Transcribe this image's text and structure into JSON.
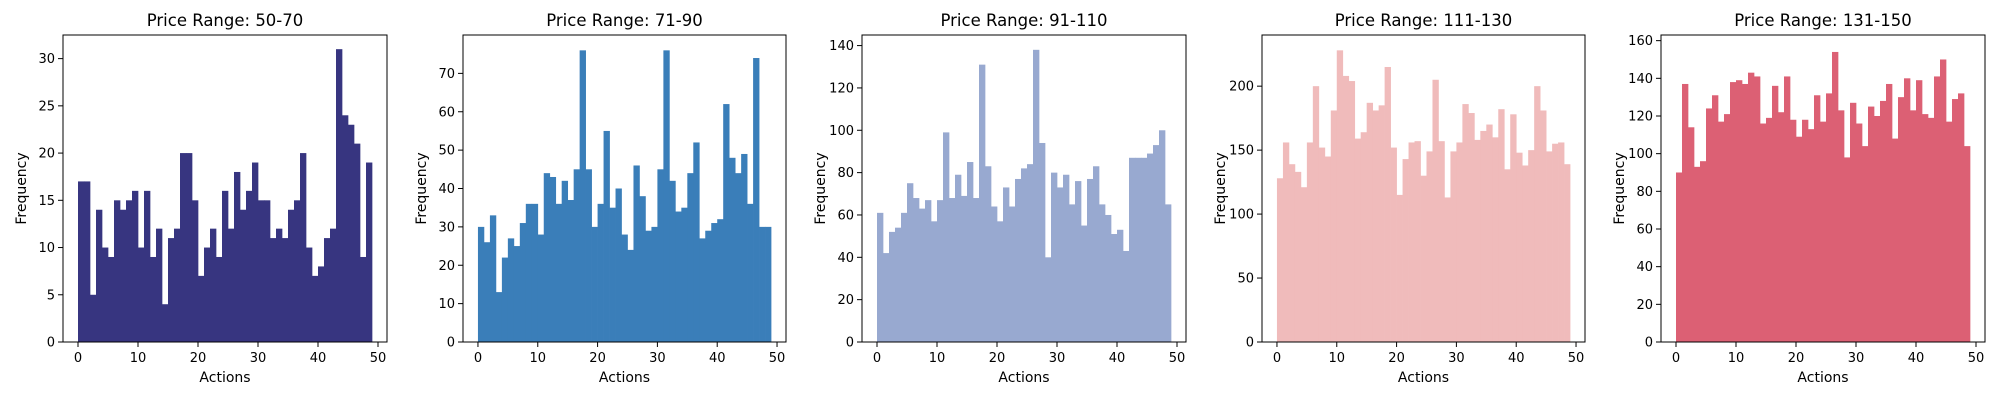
{
  "chart_data": [
    {
      "type": "bar",
      "title": "Price Range: 50-70",
      "xlabel": "Actions",
      "ylabel": "Frequency",
      "color": "#373580",
      "xlim": [
        -2.5,
        51.5
      ],
      "ylim": [
        0,
        32.5
      ],
      "xticks": [
        0,
        10,
        20,
        30,
        40,
        50
      ],
      "yticks": [
        0,
        5,
        10,
        15,
        20,
        25,
        30
      ],
      "x": [
        0,
        1,
        2,
        3,
        4,
        5,
        6,
        7,
        8,
        9,
        10,
        11,
        12,
        13,
        14,
        15,
        16,
        17,
        18,
        19,
        20,
        21,
        22,
        23,
        24,
        25,
        26,
        27,
        28,
        29,
        30,
        31,
        32,
        33,
        34,
        35,
        36,
        37,
        38,
        39,
        40,
        41,
        42,
        43,
        44,
        45,
        46,
        47,
        48
      ],
      "values": [
        17,
        17,
        5,
        14,
        10,
        9,
        15,
        14,
        15,
        16,
        10,
        16,
        9,
        12,
        4,
        11,
        12,
        20,
        20,
        15,
        7,
        10,
        12,
        9,
        16,
        12,
        18,
        14,
        16,
        19,
        15,
        15,
        11,
        12,
        11,
        14,
        15,
        20,
        10,
        7,
        8,
        11,
        12,
        31,
        24,
        23,
        21,
        9,
        19
      ]
    },
    {
      "type": "bar",
      "title": "Price Range: 71-90",
      "xlabel": "Actions",
      "ylabel": "Frequency",
      "color": "#3a7eb9",
      "xlim": [
        -2.5,
        51.5
      ],
      "ylim": [
        0,
        80
      ],
      "xticks": [
        0,
        10,
        20,
        30,
        40,
        50
      ],
      "yticks": [
        0,
        10,
        20,
        30,
        40,
        50,
        60,
        70
      ],
      "x": [
        0,
        1,
        2,
        3,
        4,
        5,
        6,
        7,
        8,
        9,
        10,
        11,
        12,
        13,
        14,
        15,
        16,
        17,
        18,
        19,
        20,
        21,
        22,
        23,
        24,
        25,
        26,
        27,
        28,
        29,
        30,
        31,
        32,
        33,
        34,
        35,
        36,
        37,
        38,
        39,
        40,
        41,
        42,
        43,
        44,
        45,
        46,
        47,
        48
      ],
      "values": [
        30,
        26,
        33,
        13,
        22,
        27,
        25,
        31,
        36,
        36,
        28,
        44,
        43,
        36,
        42,
        37,
        45,
        76,
        45,
        30,
        36,
        55,
        35,
        40,
        28,
        24,
        46,
        38,
        29,
        30,
        45,
        76,
        42,
        34,
        35,
        44,
        52,
        27,
        29,
        31,
        32,
        62,
        48,
        44,
        49,
        36,
        74,
        30,
        30
      ]
    },
    {
      "type": "bar",
      "title": "Price Range: 91-110",
      "xlabel": "Actions",
      "ylabel": "Frequency",
      "color": "#98a9d0",
      "xlim": [
        -2.5,
        51.5
      ],
      "ylim": [
        0,
        145
      ],
      "xticks": [
        0,
        10,
        20,
        30,
        40,
        50
      ],
      "yticks": [
        0,
        20,
        40,
        60,
        80,
        100,
        120,
        140
      ],
      "x": [
        0,
        1,
        2,
        3,
        4,
        5,
        6,
        7,
        8,
        9,
        10,
        11,
        12,
        13,
        14,
        15,
        16,
        17,
        18,
        19,
        20,
        21,
        22,
        23,
        24,
        25,
        26,
        27,
        28,
        29,
        30,
        31,
        32,
        33,
        34,
        35,
        36,
        37,
        38,
        39,
        40,
        41,
        42,
        43,
        44,
        45,
        46,
        47,
        48
      ],
      "values": [
        61,
        42,
        52,
        54,
        61,
        75,
        68,
        63,
        67,
        57,
        67,
        99,
        68,
        79,
        69,
        85,
        68,
        131,
        83,
        64,
        57,
        73,
        64,
        77,
        82,
        84,
        138,
        94,
        40,
        80,
        73,
        79,
        65,
        76,
        55,
        77,
        83,
        65,
        60,
        51,
        53,
        43,
        87,
        87,
        87,
        89,
        93,
        100,
        65
      ]
    },
    {
      "type": "bar",
      "title": "Price Range: 111-130",
      "xlabel": "Actions",
      "ylabel": "Frequency",
      "color": "#f0bbbb",
      "xlim": [
        -2.5,
        51.5
      ],
      "ylim": [
        0,
        240
      ],
      "xticks": [
        0,
        10,
        20,
        30,
        40,
        50
      ],
      "yticks": [
        0,
        50,
        100,
        150,
        200
      ],
      "x": [
        0,
        1,
        2,
        3,
        4,
        5,
        6,
        7,
        8,
        9,
        10,
        11,
        12,
        13,
        14,
        15,
        16,
        17,
        18,
        19,
        20,
        21,
        22,
        23,
        24,
        25,
        26,
        27,
        28,
        29,
        30,
        31,
        32,
        33,
        34,
        35,
        36,
        37,
        38,
        39,
        40,
        41,
        42,
        43,
        44,
        45,
        46,
        47,
        48
      ],
      "values": [
        128,
        156,
        139,
        133,
        121,
        156,
        200,
        152,
        145,
        181,
        228,
        208,
        204,
        159,
        164,
        187,
        181,
        185,
        215,
        152,
        115,
        143,
        156,
        157,
        130,
        149,
        205,
        157,
        113,
        149,
        156,
        186,
        179,
        158,
        165,
        170,
        160,
        182,
        135,
        178,
        148,
        138,
        150,
        200,
        181,
        149,
        155,
        156,
        139
      ]
    },
    {
      "type": "bar",
      "title": "Price Range: 131-150",
      "xlabel": "Actions",
      "ylabel": "Frequency",
      "color": "#dc6074",
      "xlim": [
        -2.5,
        51.5
      ],
      "ylim": [
        0,
        163
      ],
      "xticks": [
        0,
        10,
        20,
        30,
        40,
        50
      ],
      "yticks": [
        0,
        20,
        40,
        60,
        80,
        100,
        120,
        140,
        160
      ],
      "x": [
        0,
        1,
        2,
        3,
        4,
        5,
        6,
        7,
        8,
        9,
        10,
        11,
        12,
        13,
        14,
        15,
        16,
        17,
        18,
        19,
        20,
        21,
        22,
        23,
        24,
        25,
        26,
        27,
        28,
        29,
        30,
        31,
        32,
        33,
        34,
        35,
        36,
        37,
        38,
        39,
        40,
        41,
        42,
        43,
        44,
        45,
        46,
        47,
        48
      ],
      "values": [
        90,
        137,
        114,
        93,
        96,
        124,
        131,
        117,
        121,
        138,
        139,
        137,
        143,
        141,
        116,
        119,
        136,
        122,
        141,
        118,
        109,
        118,
        113,
        131,
        117,
        132,
        154,
        123,
        98,
        127,
        116,
        104,
        125,
        120,
        128,
        137,
        108,
        130,
        140,
        123,
        139,
        121,
        119,
        141,
        150,
        117,
        129,
        132,
        104
      ]
    }
  ]
}
